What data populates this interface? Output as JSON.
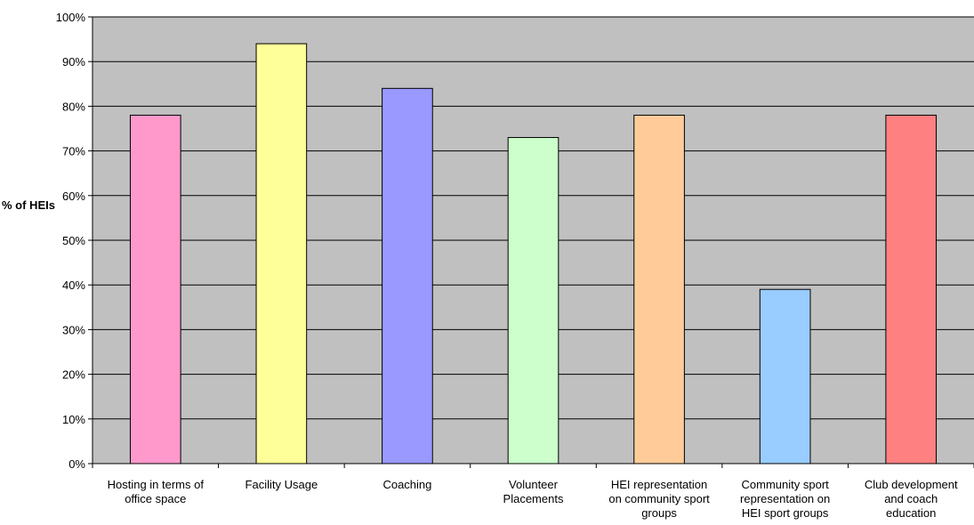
{
  "chart_data": {
    "type": "bar",
    "title": "",
    "xlabel": "",
    "ylabel": "% of HEIs",
    "ylim": [
      0,
      100
    ],
    "y_tick_step": 10,
    "y_tick_suffix": "%",
    "grid": true,
    "legend": "none",
    "plot_background": "#c0c0c0",
    "categories": [
      [
        "Hosting in terms of",
        "office space"
      ],
      [
        "Facility Usage"
      ],
      [
        "Coaching"
      ],
      [
        "Volunteer",
        "Placements"
      ],
      [
        "HEI representation",
        "on community sport",
        "groups"
      ],
      [
        "Community sport",
        "representation on",
        "HEI sport groups"
      ],
      [
        "Club development",
        "and coach",
        "education"
      ]
    ],
    "values": [
      78,
      94,
      84,
      73,
      78,
      39,
      78
    ],
    "bar_colors": [
      "#ff99cc",
      "#ffff99",
      "#9999ff",
      "#ccffcc",
      "#ffcc99",
      "#99ccff",
      "#ff8080"
    ]
  }
}
